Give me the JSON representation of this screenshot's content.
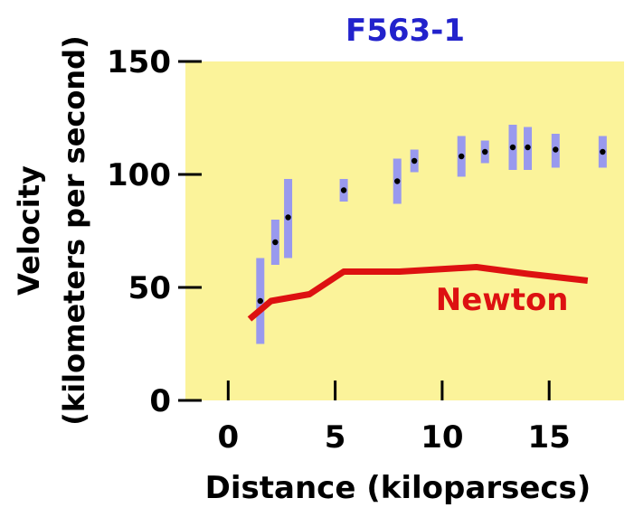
{
  "chart_data": {
    "type": "scatter",
    "title": "F563-1",
    "xlabel": "Distance (kiloparsecs)",
    "ylabel_line1": "Velocity",
    "ylabel_line2": "(kilometers per second)",
    "xlim": [
      -2,
      18.5
    ],
    "ylim": [
      0,
      150
    ],
    "x_ticks": [
      0,
      5,
      10,
      15
    ],
    "x_tick_labels": [
      "0",
      "5",
      "10",
      "15"
    ],
    "y_ticks": [
      0,
      50,
      100,
      150
    ],
    "y_tick_labels": [
      "0",
      "50",
      "100",
      "150"
    ],
    "grid": false,
    "colors": {
      "title": "#2222cc",
      "plot_background": "#fbf39a",
      "error_bar": "#9999ee",
      "point": "#000000",
      "newton": "#dd1111"
    },
    "series": [
      {
        "type": "scatter-errorbar",
        "x": [
          1.5,
          2.2,
          2.8,
          5.4,
          7.9,
          8.7,
          10.9,
          12.0,
          13.3,
          14.0,
          15.3,
          17.5
        ],
        "y": [
          44,
          70,
          81,
          93,
          97,
          106,
          108,
          110,
          112,
          112,
          111,
          110
        ],
        "low": [
          25,
          60,
          63,
          88,
          87,
          101,
          99,
          105,
          102,
          102,
          103,
          103
        ],
        "high": [
          63,
          80,
          98,
          98,
          107,
          111,
          117,
          115,
          122,
          121,
          118,
          117
        ]
      },
      {
        "name": "Newton",
        "type": "line",
        "x": [
          1.0,
          2.0,
          3.8,
          5.4,
          8.0,
          11.6,
          14.0,
          16.8
        ],
        "y": [
          36,
          44,
          47,
          57,
          57,
          59,
          56,
          53
        ]
      }
    ],
    "annotations": [
      {
        "text": "Newton",
        "x": 12.8,
        "y": 40
      }
    ]
  }
}
